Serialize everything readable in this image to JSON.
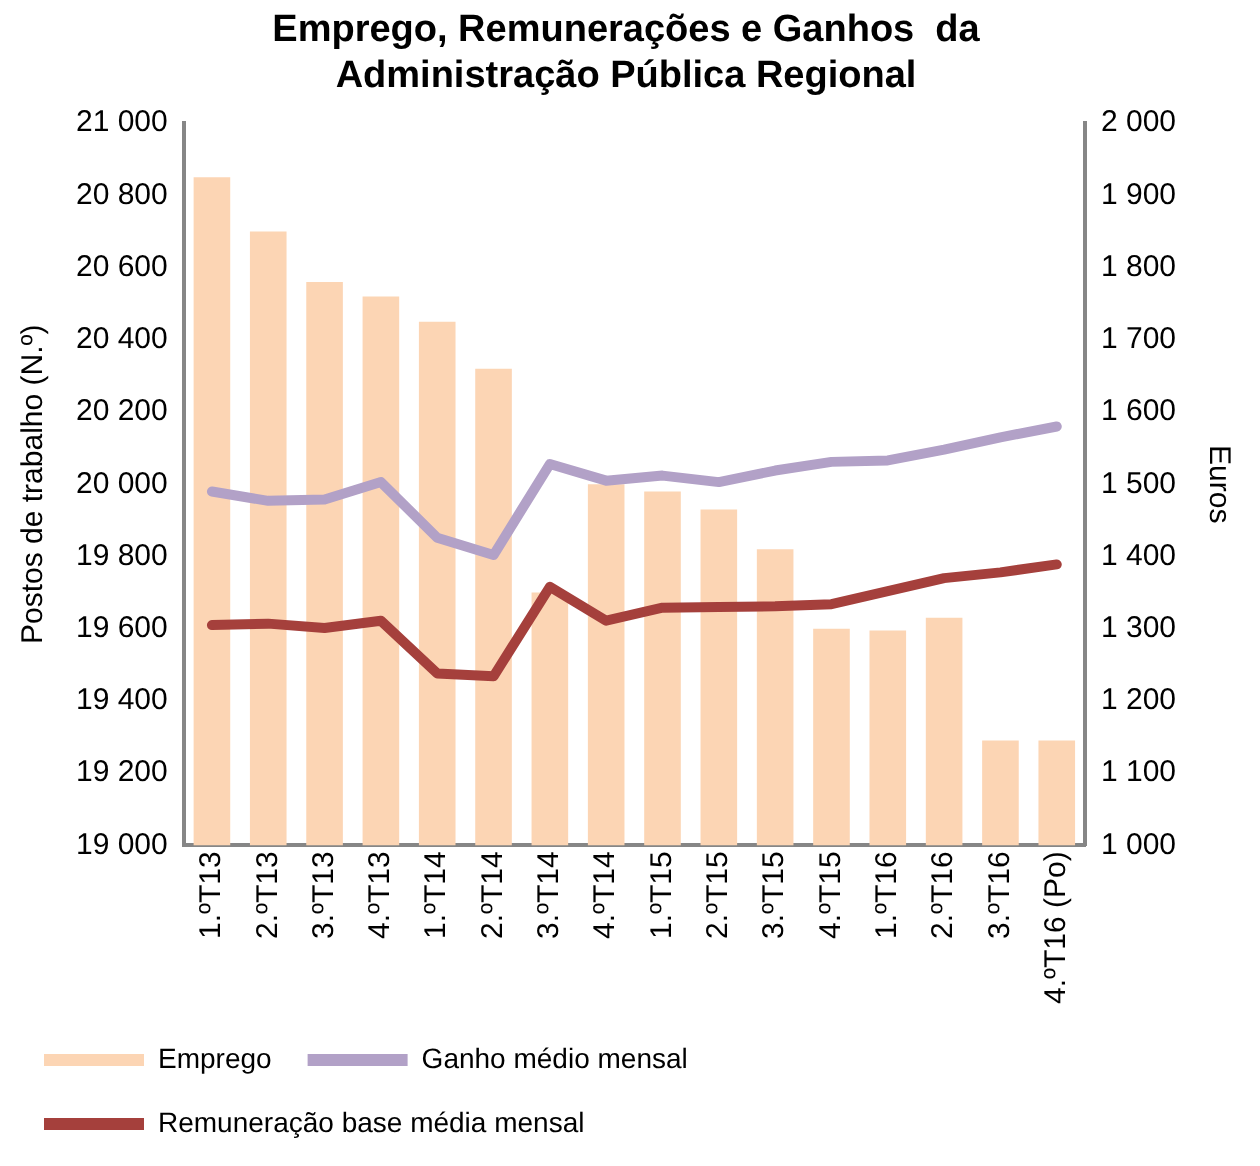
{
  "chart_data": {
    "type": "bar",
    "title": "Emprego, Remunerações e Ganhos  da Administração Pública Regional",
    "ylabel": "Postos de trabalho (N.º)",
    "y2label": "Euros",
    "categories": [
      "1.ºT13",
      "2.ºT13",
      "3.ºT13",
      "4.ºT13",
      "1.ºT14",
      "2.ºT14",
      "3.ºT14",
      "4.ºT14",
      "1.ºT15",
      "2.ºT15",
      "3.ºT15",
      "4.ºT15",
      "1.ºT16",
      "2.ºT16",
      "3.ºT16",
      "4.ºT16 (Po)"
    ],
    "series": [
      {
        "name": "Emprego",
        "color": "#fcd5b4",
        "values": [
          20850,
          20700,
          20560,
          20520,
          20450,
          20320,
          19700,
          20000,
          19980,
          19930,
          19820,
          19600,
          19595,
          19630,
          19290,
          19290
        ]
      },
      {
        "name": "Ganho médio mensal",
        "type": "line",
        "axis": "y2",
        "color": "#b2a1c7",
        "values": [
          1490,
          1477,
          1479,
          1503,
          1426,
          1402,
          1528,
          1505,
          1512,
          1503,
          1519,
          1531,
          1533,
          1548,
          1565,
          1580
        ]
      },
      {
        "name": "Remuneração base média mensal",
        "type": "line",
        "axis": "y2",
        "color": "#a5403c",
        "values": [
          1305,
          1307,
          1301,
          1311,
          1238,
          1234,
          1358,
          1311,
          1329,
          1330,
          1331,
          1334,
          1352,
          1370,
          1378,
          1389
        ]
      }
    ],
    "ylim": [
      19000,
      21000
    ],
    "yticks": [
      {
        "value": 19000,
        "label": "19 000"
      },
      {
        "value": 19200,
        "label": "19 200"
      },
      {
        "value": 19400,
        "label": "19 400"
      },
      {
        "value": 19600,
        "label": "19 600"
      },
      {
        "value": 19800,
        "label": "19 800"
      },
      {
        "value": 20000,
        "label": "20 000"
      },
      {
        "value": 20200,
        "label": "20 200"
      },
      {
        "value": 20400,
        "label": "20 400"
      },
      {
        "value": 20600,
        "label": "20 600"
      },
      {
        "value": 20800,
        "label": "20 800"
      },
      {
        "value": 21000,
        "label": "21 000"
      }
    ],
    "y2lim": [
      1000,
      2000
    ],
    "y2ticks": [
      {
        "value": 1000,
        "label": "1 000"
      },
      {
        "value": 1100,
        "label": "1 100"
      },
      {
        "value": 1200,
        "label": "1 200"
      },
      {
        "value": 1300,
        "label": "1 300"
      },
      {
        "value": 1400,
        "label": "1 400"
      },
      {
        "value": 1500,
        "label": "1 500"
      },
      {
        "value": 1600,
        "label": "1 600"
      },
      {
        "value": 1700,
        "label": "1 700"
      },
      {
        "value": 1800,
        "label": "1 800"
      },
      {
        "value": 1900,
        "label": "1 900"
      },
      {
        "value": 2000,
        "label": "2 000"
      }
    ],
    "grid": false,
    "legend": "bottom",
    "marker": "none",
    "line_style": "solid"
  }
}
